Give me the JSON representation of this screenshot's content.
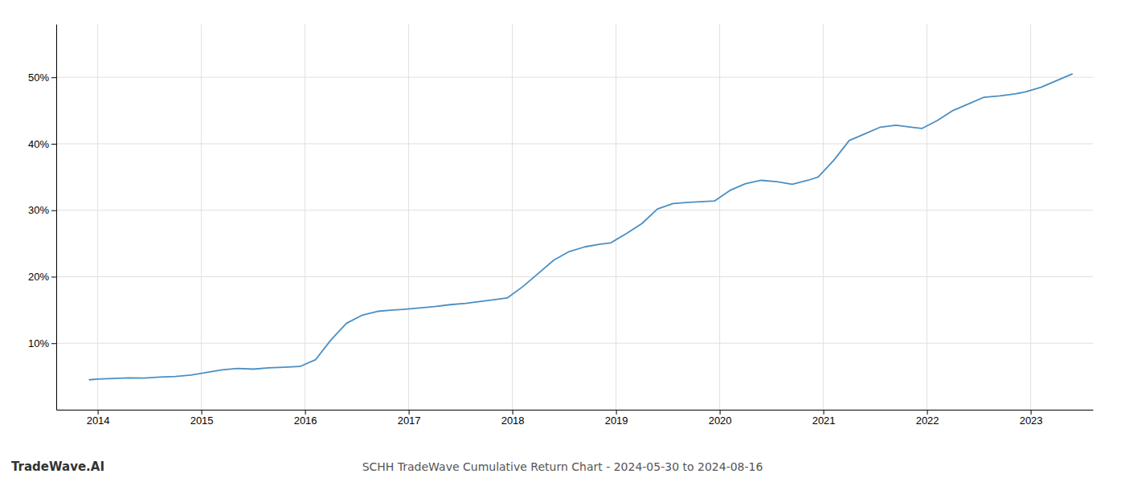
{
  "chart_data": {
    "type": "line",
    "title": "SCHH TradeWave Cumulative Return Chart - 2024-05-30 to 2024-08-16",
    "annotations": [
      "TradeWave.AI"
    ],
    "color": "#4a8fc4",
    "grid": true,
    "xlim": [
      2013.6,
      2023.6
    ],
    "xticks": [
      2014,
      2015,
      2016,
      2017,
      2018,
      2019,
      2020,
      2021,
      2022,
      2023
    ],
    "ylim": [
      0,
      58
    ],
    "yticks": [
      {
        "value": 10,
        "label": "10%"
      },
      {
        "value": 20,
        "label": "20%"
      },
      {
        "value": 30,
        "label": "30%"
      },
      {
        "value": 40,
        "label": "40%"
      },
      {
        "value": 50,
        "label": "50%"
      }
    ],
    "x": [
      2013.92,
      2014.0,
      2014.15,
      2014.3,
      2014.45,
      2014.6,
      2014.75,
      2014.9,
      2015.05,
      2015.2,
      2015.35,
      2015.5,
      2015.65,
      2015.8,
      2015.95,
      2016.1,
      2016.25,
      2016.4,
      2016.55,
      2016.7,
      2016.85,
      2016.95,
      2017.1,
      2017.25,
      2017.4,
      2017.55,
      2017.7,
      2017.85,
      2017.95,
      2018.1,
      2018.25,
      2018.4,
      2018.55,
      2018.7,
      2018.85,
      2018.95,
      2019.1,
      2019.25,
      2019.4,
      2019.55,
      2019.7,
      2019.85,
      2019.95,
      2020.1,
      2020.25,
      2020.4,
      2020.55,
      2020.7,
      2020.85,
      2020.95,
      2021.1,
      2021.25,
      2021.4,
      2021.55,
      2021.7,
      2021.85,
      2021.95,
      2022.1,
      2022.25,
      2022.4,
      2022.55,
      2022.7,
      2022.85,
      2022.95,
      2023.1,
      2023.25,
      2023.4
    ],
    "values": [
      4.5,
      4.6,
      4.7,
      4.8,
      4.75,
      4.9,
      5.0,
      5.2,
      5.6,
      6.0,
      6.2,
      6.1,
      6.3,
      6.4,
      6.5,
      7.5,
      10.5,
      13.0,
      14.2,
      14.8,
      15.0,
      15.1,
      15.3,
      15.5,
      15.8,
      16.0,
      16.3,
      16.6,
      16.8,
      18.5,
      20.5,
      22.5,
      23.8,
      24.5,
      24.9,
      25.1,
      26.5,
      28.0,
      30.2,
      31.0,
      31.2,
      31.3,
      31.4,
      33.0,
      34.0,
      34.5,
      34.3,
      33.9,
      34.5,
      35.0,
      37.5,
      40.5,
      41.5,
      42.5,
      42.8,
      42.5,
      42.3,
      43.5,
      45.0,
      46.0,
      47.0,
      47.2,
      47.5,
      47.8,
      48.5,
      49.5,
      50.5
    ]
  }
}
